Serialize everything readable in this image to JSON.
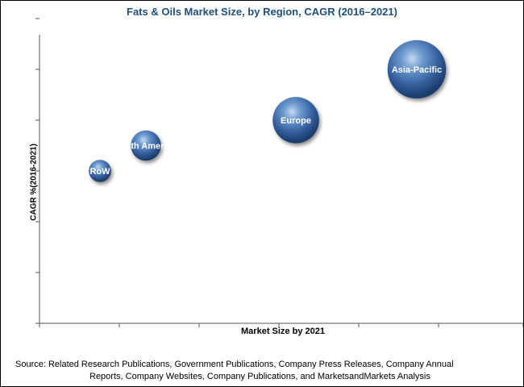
{
  "chart_data": {
    "type": "bubble",
    "title": "Fats & Oils Market Size, by Region, CAGR (2016–2021)",
    "xlabel": "Market Size by 2021",
    "ylabel": "CAGR %(2016-2021)",
    "axis_ticks": "unlabeled",
    "grid": false,
    "series": [
      {
        "label": "RoW",
        "x": 1.25,
        "y": 3.0,
        "size": 0.55
      },
      {
        "label": "North America",
        "x": 2.2,
        "y": 3.5,
        "size": 0.75
      },
      {
        "label": "Europe",
        "x": 5.3,
        "y": 4.0,
        "size": 1.15
      },
      {
        "label": "Asia-Pacific",
        "x": 7.8,
        "y": 5.0,
        "size": 1.45
      }
    ],
    "xlim": [
      0,
      10
    ],
    "ylim": [
      0,
      6
    ],
    "bubble_color": "#3a6cb0"
  },
  "source": {
    "line1": "Source:  Related Research Publications,  Government Publications,  Company Press Releases,  Company Annual",
    "line2": "Reports,  Company Websites,  Company Publications,  and MarketsandMarkets Analysis"
  }
}
